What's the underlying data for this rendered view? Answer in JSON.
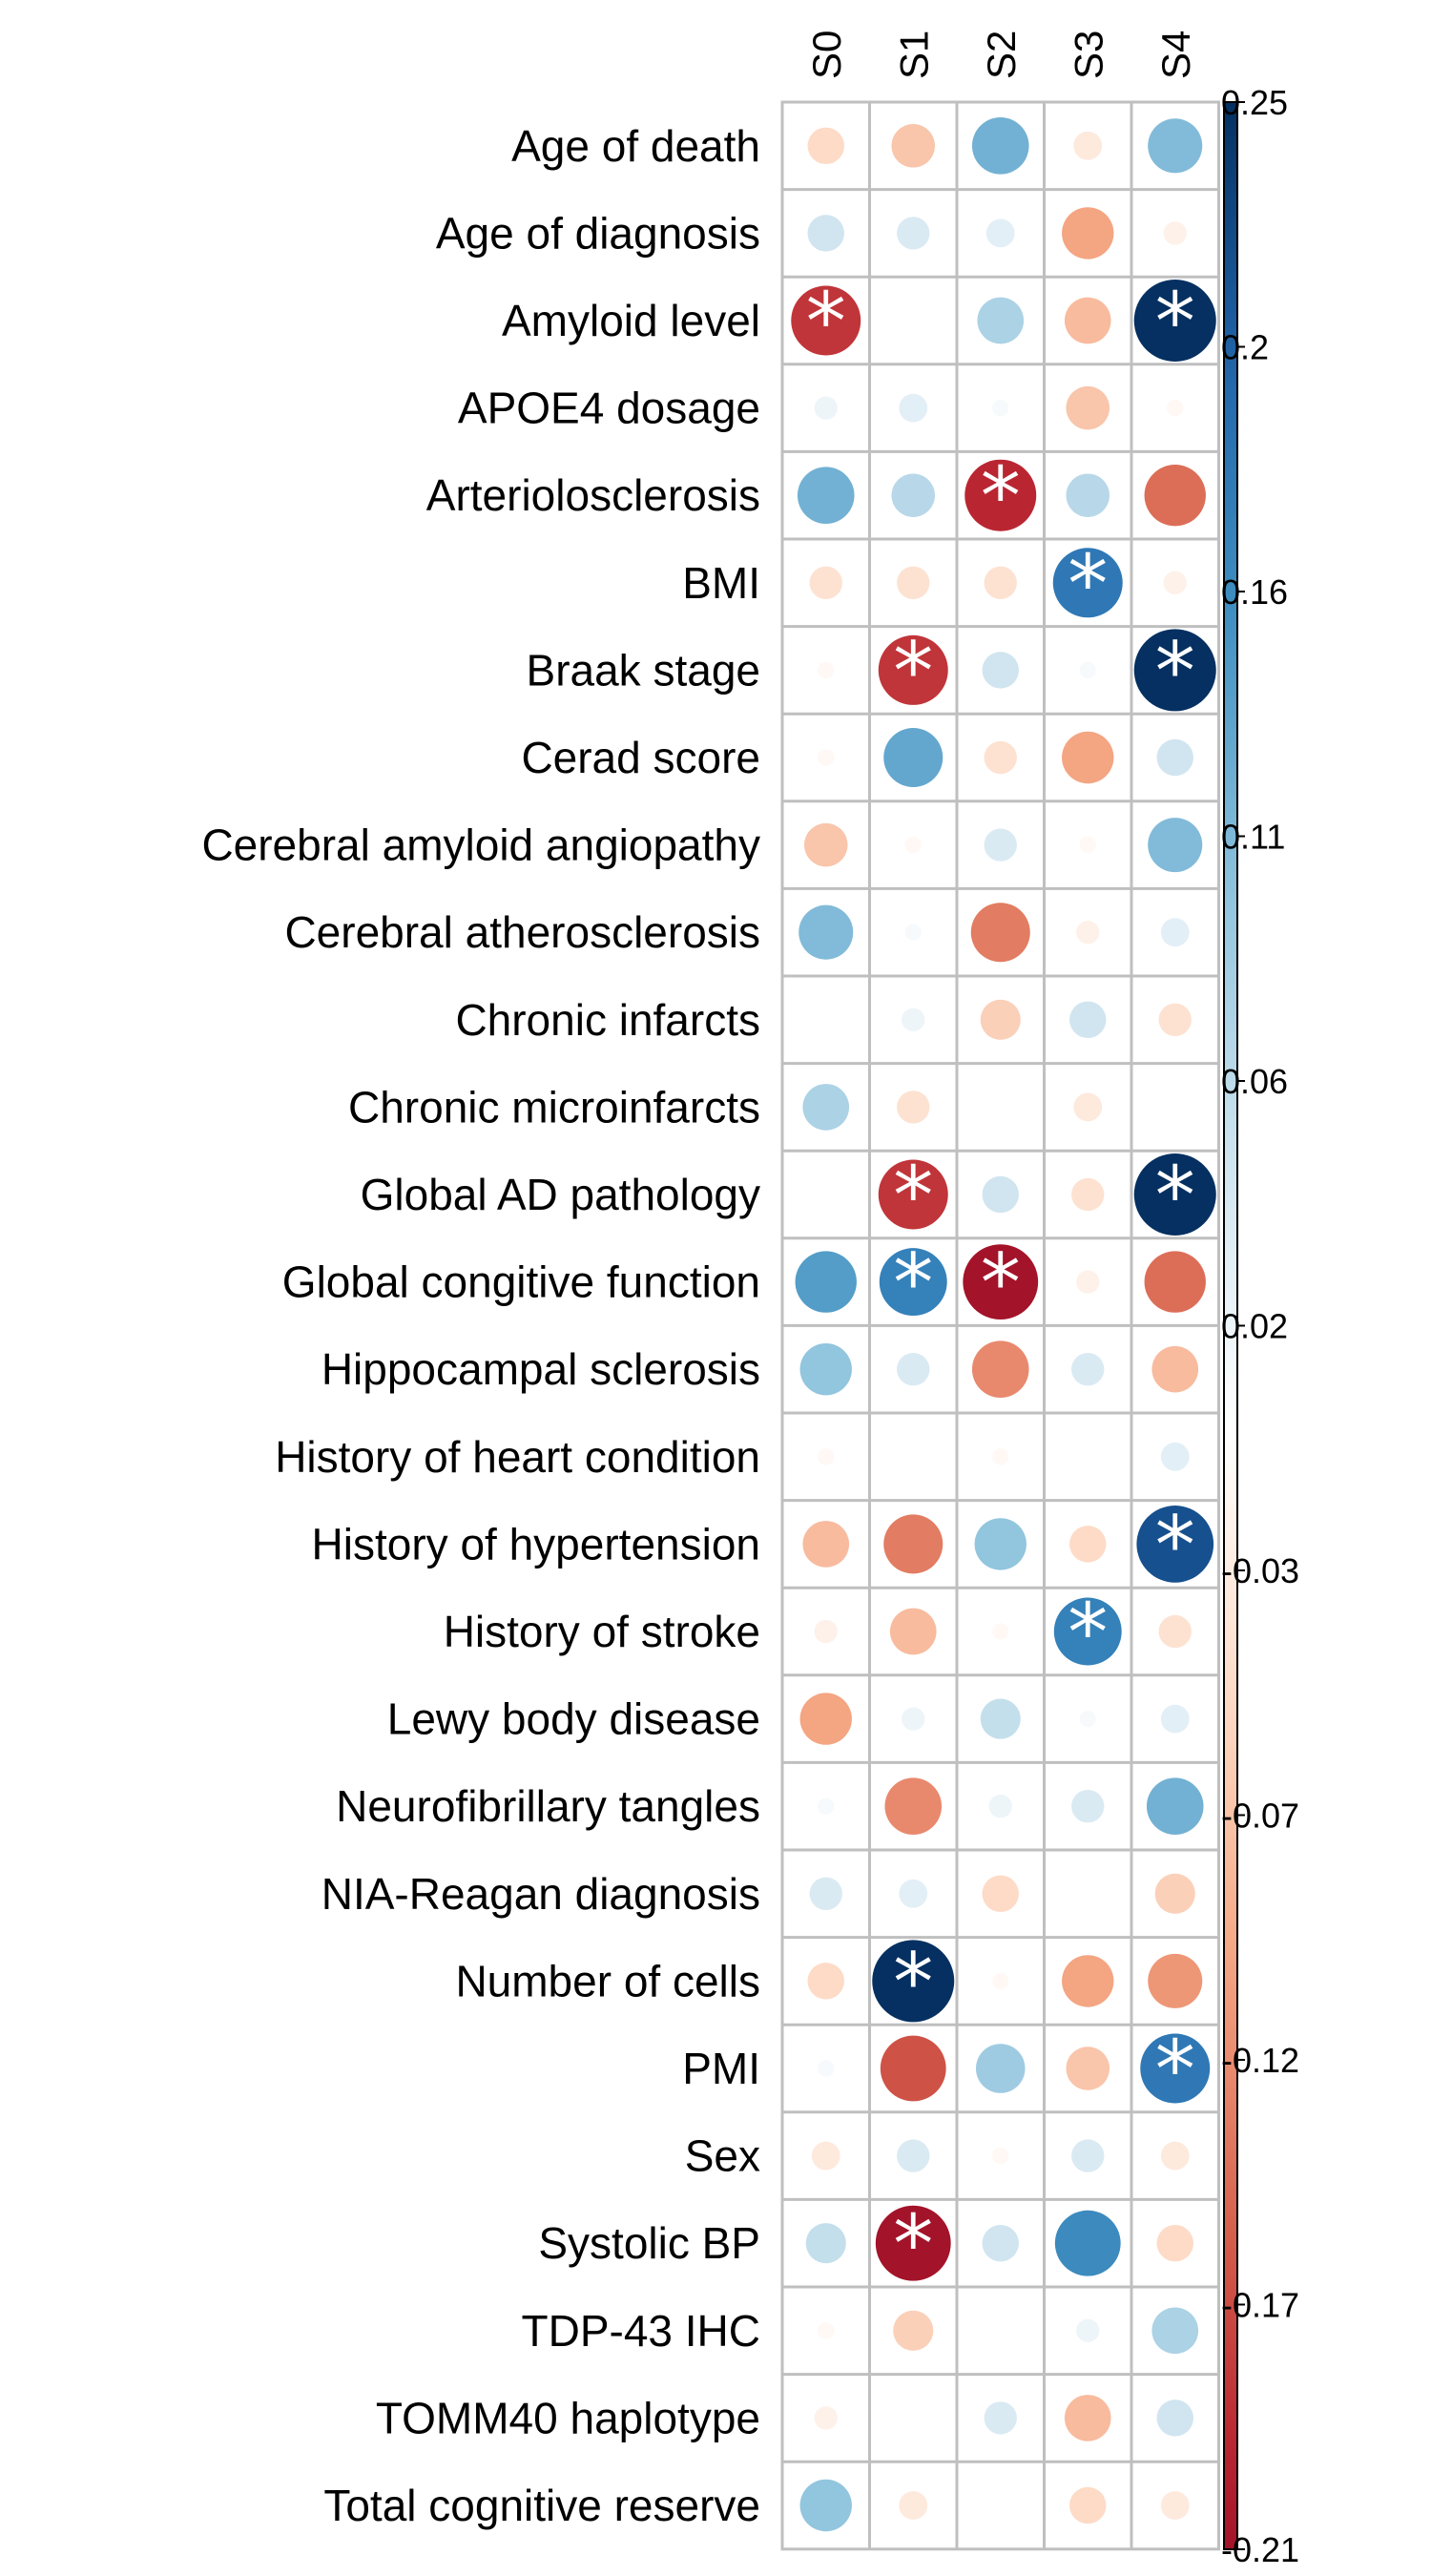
{
  "chart_data": {
    "type": "heatmap",
    "rows": [
      "Age of death",
      "Age of diagnosis",
      "Amyloid level",
      "APOE4 dosage",
      "Arteriolosclerosis",
      "BMI",
      "Braak stage",
      "Cerad score",
      "Cerebral amyloid angiopathy",
      "Cerebral atherosclerosis",
      "Chronic infarcts",
      "Chronic microinfarcts",
      "Global AD pathology",
      "Global congitive function",
      "Hippocampal sclerosis",
      "History of heart condition",
      "History of hypertension",
      "History of stroke",
      "Lewy body disease",
      "Neurofibrillary tangles",
      "NIA-Reagan diagnosis",
      "Number of cells",
      "PMI",
      "Sex",
      "Systolic BP",
      "TDP-43 IHC",
      "TOMM40 haplotype",
      "Total cognitive reserve"
    ],
    "columns": [
      "S0",
      "S1",
      "S2",
      "S3",
      "S4"
    ],
    "values": [
      [
        -0.05,
        -0.07,
        0.12,
        -0.03,
        0.11
      ],
      [
        0.05,
        0.04,
        0.03,
        -0.1,
        -0.02
      ],
      [
        -0.18,
        0.0,
        0.08,
        -0.08,
        0.25
      ],
      [
        0.02,
        0.03,
        0.01,
        -0.07,
        -0.01
      ],
      [
        0.12,
        0.07,
        -0.19,
        0.07,
        -0.14
      ],
      [
        -0.04,
        -0.04,
        -0.04,
        0.18,
        -0.02
      ],
      [
        -0.01,
        -0.18,
        0.05,
        0.01,
        0.25
      ],
      [
        -0.01,
        0.13,
        -0.04,
        -0.1,
        0.05
      ],
      [
        -0.07,
        -0.01,
        0.04,
        -0.01,
        0.11
      ],
      [
        0.11,
        0.01,
        -0.13,
        -0.02,
        0.03
      ],
      [
        0.0,
        0.02,
        -0.06,
        0.05,
        -0.04
      ],
      [
        0.08,
        -0.04,
        0.0,
        -0.03,
        0.0
      ],
      [
        0.0,
        -0.18,
        0.05,
        -0.04,
        0.25
      ],
      [
        0.14,
        0.17,
        -0.21,
        -0.02,
        -0.14
      ],
      [
        0.1,
        0.04,
        -0.12,
        0.04,
        -0.08
      ],
      [
        -0.01,
        0.0,
        -0.01,
        0.0,
        0.03
      ],
      [
        -0.08,
        -0.13,
        0.1,
        -0.05,
        0.22
      ],
      [
        -0.02,
        -0.08,
        -0.01,
        0.17,
        -0.04
      ],
      [
        -0.1,
        0.02,
        0.06,
        0.01,
        0.03
      ],
      [
        0.01,
        -0.12,
        0.02,
        0.04,
        0.12
      ],
      [
        0.04,
        0.03,
        -0.05,
        0.0,
        -0.06
      ],
      [
        -0.05,
        0.25,
        -0.01,
        -0.1,
        -0.11
      ],
      [
        0.01,
        -0.16,
        0.09,
        -0.07,
        0.18
      ],
      [
        -0.03,
        0.04,
        -0.01,
        0.04,
        -0.03
      ],
      [
        0.06,
        -0.21,
        0.05,
        0.16,
        -0.05
      ],
      [
        -0.01,
        -0.06,
        0.0,
        0.02,
        0.08
      ],
      [
        -0.02,
        0.0,
        0.04,
        -0.08,
        0.05
      ],
      [
        0.1,
        -0.03,
        0.0,
        -0.05,
        -0.03
      ]
    ],
    "significant": [
      [
        2,
        0
      ],
      [
        2,
        4
      ],
      [
        4,
        2
      ],
      [
        5,
        3
      ],
      [
        6,
        1
      ],
      [
        6,
        4
      ],
      [
        12,
        1
      ],
      [
        12,
        4
      ],
      [
        13,
        1
      ],
      [
        13,
        2
      ],
      [
        16,
        4
      ],
      [
        17,
        3
      ],
      [
        21,
        1
      ],
      [
        22,
        4
      ],
      [
        24,
        1
      ]
    ],
    "significance_marker": "*",
    "color_scale": {
      "min": -0.21,
      "max": 0.25,
      "ticks": [
        "0.25",
        "0.2",
        "0.16",
        "0.11",
        "0.06",
        "0.02",
        "-0.03",
        "-0.07",
        "-0.12",
        "-0.17",
        "-0.21"
      ],
      "low_color": "#67001f",
      "mid_color": "#ffffff",
      "high_color": "#053061"
    },
    "grid": true
  }
}
